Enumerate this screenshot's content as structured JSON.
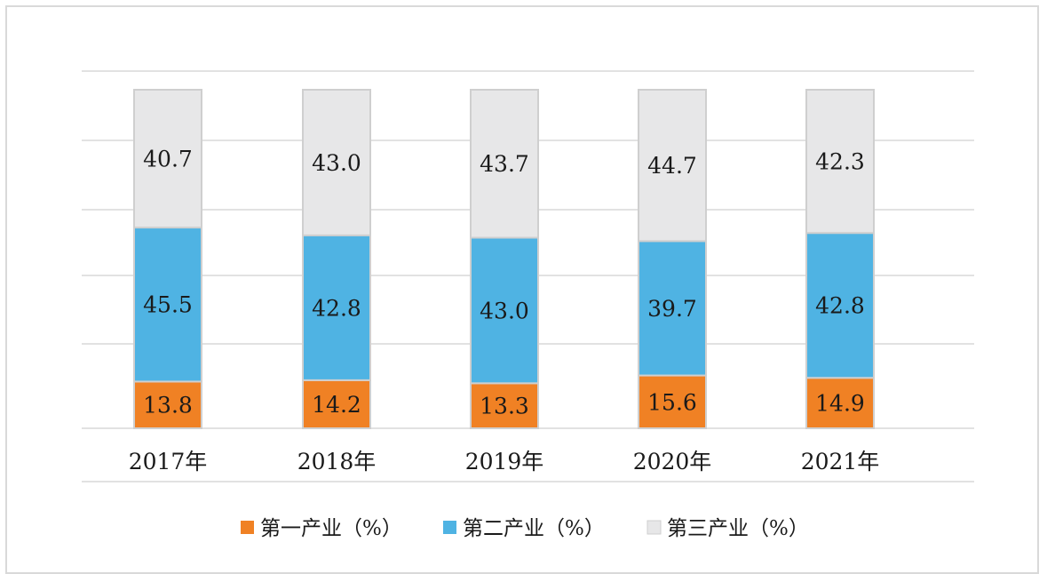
{
  "chart_data": {
    "type": "bar",
    "stacked": true,
    "categories": [
      "2017年",
      "2018年",
      "2019年",
      "2020年",
      "2021年"
    ],
    "series": [
      {
        "name": "第一产业（%）",
        "values": [
          13.8,
          14.2,
          13.3,
          15.6,
          14.9
        ],
        "color": "#f08124"
      },
      {
        "name": "第二产业（%）",
        "values": [
          45.5,
          42.8,
          43.0,
          39.7,
          42.8
        ],
        "color": "#4fb3e3"
      },
      {
        "name": "第三产业（%）",
        "values": [
          40.7,
          43.0,
          43.7,
          44.7,
          42.3
        ],
        "color": "#e7e7e8"
      }
    ],
    "title": "",
    "xlabel": "",
    "ylabel": "",
    "ylim": [
      0,
      100
    ],
    "grid": true,
    "legend_position": "bottom",
    "data_labels": true,
    "bar_border_color": "#cfcfcf",
    "gridline_color": "#d9d9d9"
  }
}
